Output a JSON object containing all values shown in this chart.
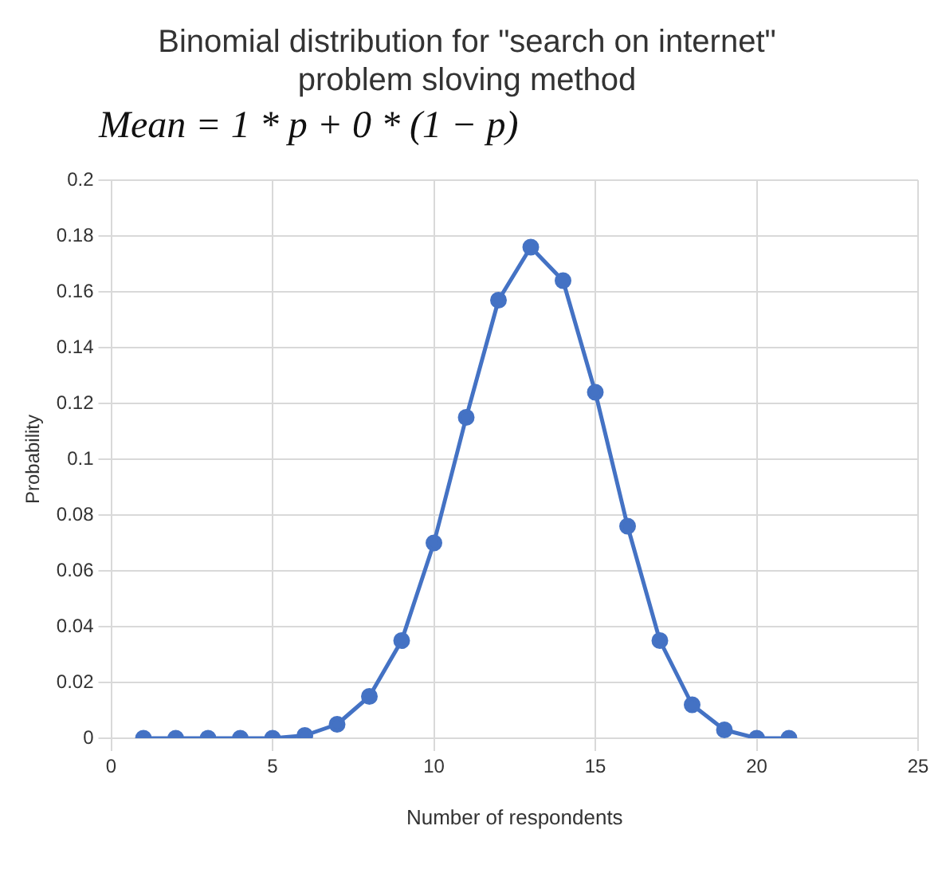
{
  "chart_data": {
    "type": "line",
    "title": [
      "Binomial distribution for \"search on internet\"",
      "problem sloving method"
    ],
    "xlabel": "Number of respondents",
    "ylabel": "Probability",
    "annotations": [
      "Mean = 1 * p + 0 * (1 − p)"
    ],
    "x": [
      1,
      2,
      3,
      4,
      5,
      6,
      7,
      8,
      9,
      10,
      11,
      12,
      13,
      14,
      15,
      16,
      17,
      18,
      19,
      20,
      21
    ],
    "series": [
      {
        "color": "#4472c4",
        "values": [
          0,
          0,
          0,
          0,
          0,
          0.001,
          0.005,
          0.015,
          0.035,
          0.07,
          0.115,
          0.157,
          0.176,
          0.164,
          0.124,
          0.076,
          0.035,
          0.012,
          0.003,
          0,
          0
        ]
      }
    ],
    "xlim": [
      0,
      25
    ],
    "xticks": [
      0,
      5,
      10,
      15,
      20,
      25
    ],
    "ylim": [
      0,
      0.2
    ],
    "yticks": [
      0,
      0.02,
      0.04,
      0.06,
      0.08,
      0.1,
      0.12,
      0.14,
      0.16,
      0.18,
      0.2
    ],
    "grid": true,
    "legend": false,
    "marker": "circle",
    "line_style": "solid"
  }
}
